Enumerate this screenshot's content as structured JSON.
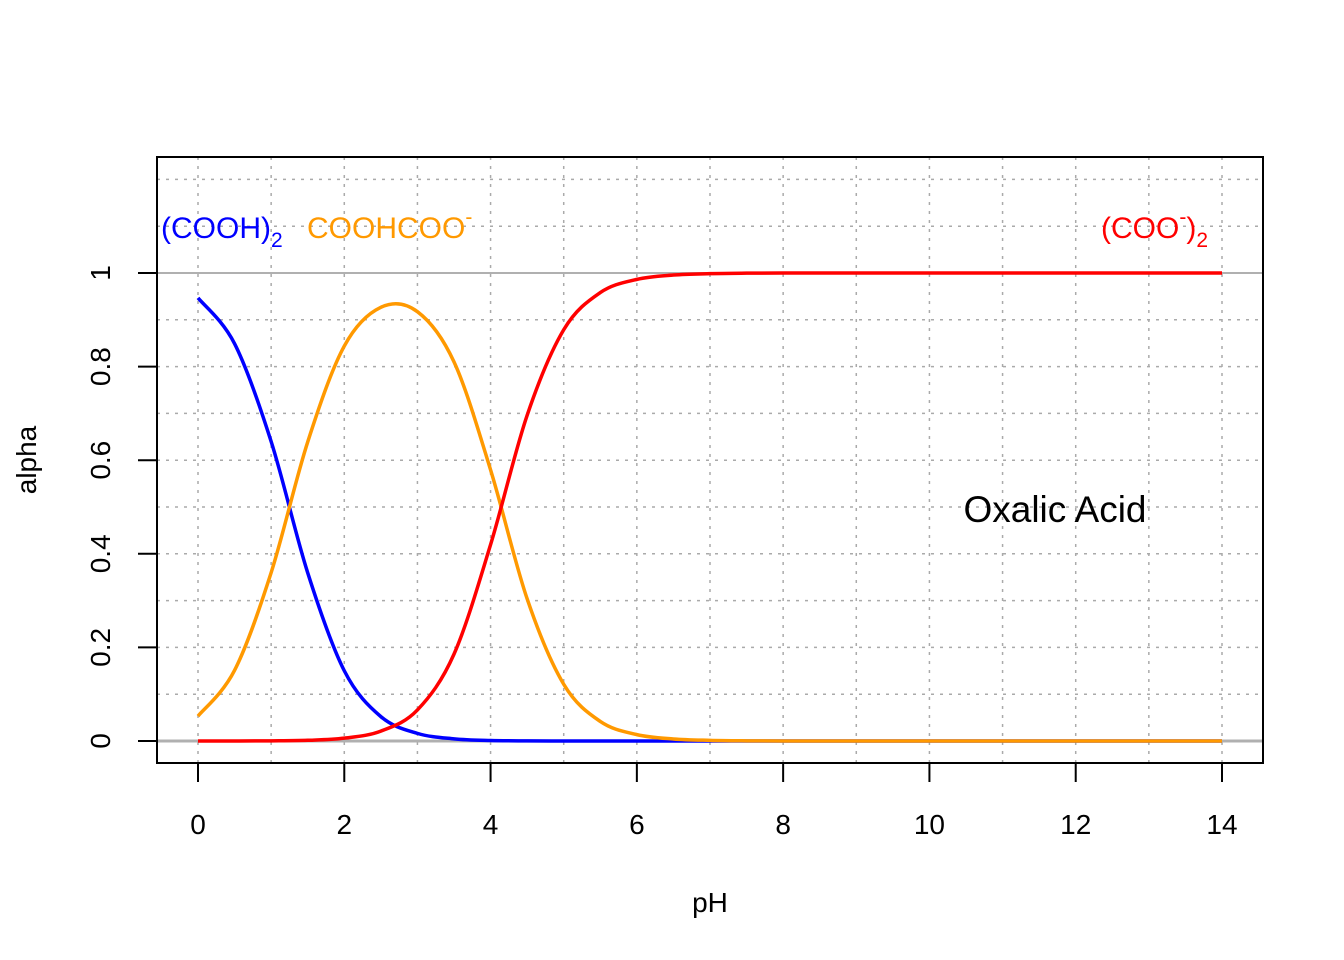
{
  "chart_data": {
    "type": "line",
    "title": "",
    "xlabel": "pH",
    "ylabel": "alpha",
    "xlim": [
      0,
      14
    ],
    "ylim": [
      0,
      1.2
    ],
    "grid": true,
    "x_ticks": [
      "0",
      "2",
      "4",
      "6",
      "8",
      "10",
      "12",
      "14"
    ],
    "y_ticks": [
      "0",
      "0.2",
      "0.4",
      "0.6",
      "0.8",
      "1"
    ],
    "annotation": "Oxalic Acid",
    "reference_lines": [
      0,
      1
    ],
    "x": [
      0,
      0.5,
      1,
      1.5,
      2,
      2.5,
      3,
      3.5,
      4,
      4.5,
      5,
      5.5,
      6,
      6.5,
      7,
      7.5,
      8,
      9,
      10,
      11,
      12,
      13,
      14
    ],
    "series": [
      {
        "label_main": "(COOH)",
        "label_sub": "2",
        "color": "#0000FF",
        "values": [
          0.9468,
          0.849,
          0.6399,
          0.3594,
          0.1501,
          0.0521,
          0.0163,
          0.0046,
          0.001,
          0.0002,
          0,
          0,
          0,
          0,
          0,
          0,
          0,
          0,
          0,
          0,
          0,
          0,
          0
        ]
      },
      {
        "label_main": "COOHCOO",
        "label_sup": "-",
        "color": "#FF9900",
        "values": [
          0.0532,
          0.151,
          0.3598,
          0.6391,
          0.8438,
          0.9266,
          0.9173,
          0.81,
          0.5793,
          0.3038,
          0.1213,
          0.0418,
          0.0136,
          0.0043,
          0.0014,
          0.0004,
          0.0001,
          0,
          0,
          0,
          0,
          0,
          0
        ]
      },
      {
        "label_main": "(COO",
        "label_sup": "-",
        "label_close": ")",
        "label_sub": "2",
        "color": "#FF0000",
        "values": [
          0,
          0,
          0.0003,
          0.0015,
          0.0061,
          0.0212,
          0.0664,
          0.1856,
          0.4196,
          0.696,
          0.8787,
          0.9582,
          0.9864,
          0.9957,
          0.9986,
          0.9996,
          0.9999,
          1,
          1,
          1,
          1,
          1,
          1
        ]
      }
    ]
  }
}
